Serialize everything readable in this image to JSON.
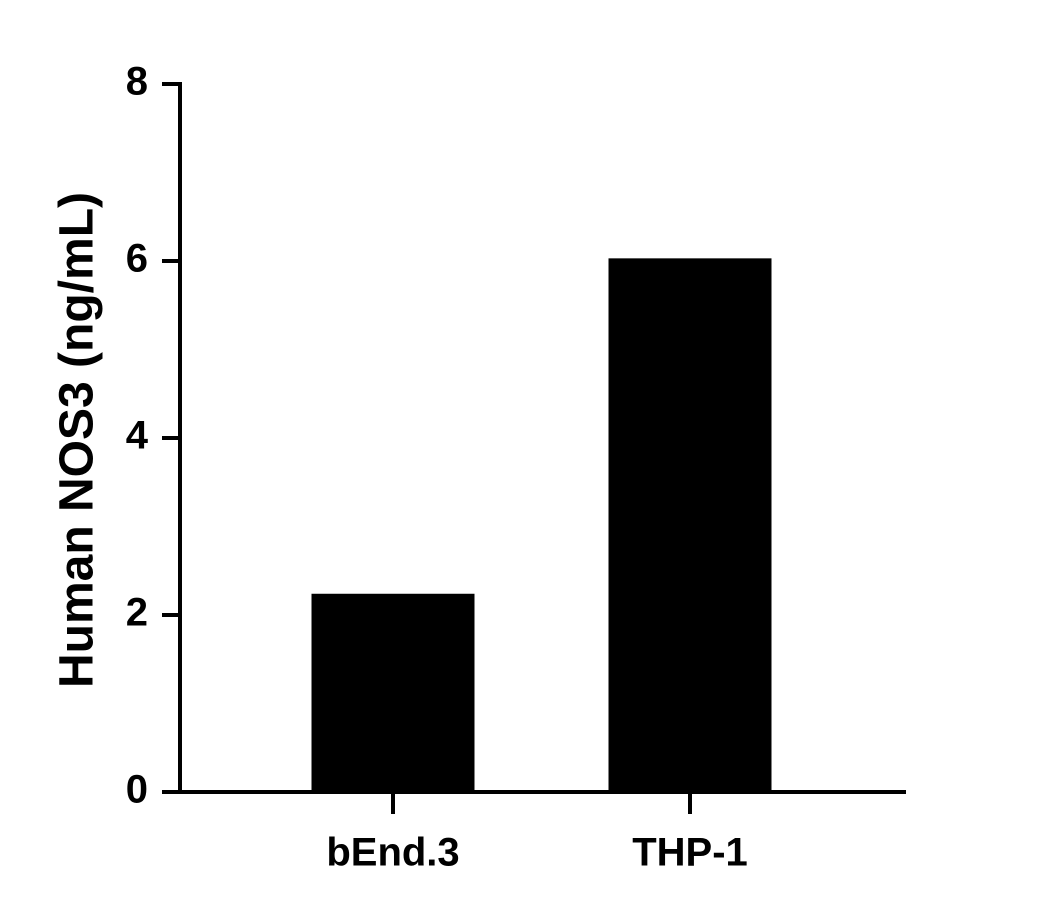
{
  "chart_data": {
    "type": "bar",
    "y_label": "Human NOS3 (ng/mL)",
    "categories": [
      "bEnd.3",
      "THP-1"
    ],
    "values": [
      2.24,
      6.03
    ],
    "color": "#000000",
    "ylim": [
      0,
      8
    ],
    "yticks": [
      0,
      2,
      4,
      6,
      8
    ],
    "grid": false
  }
}
